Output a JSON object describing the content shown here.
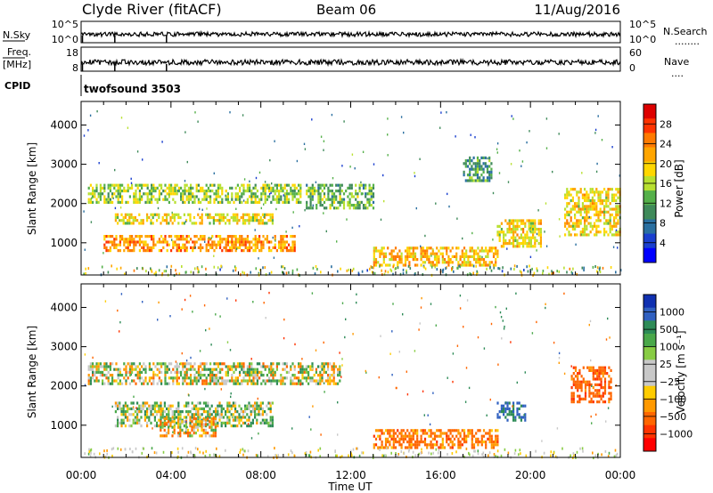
{
  "header": {
    "station": "Clyde River (fitACF)",
    "beam": "Beam 06",
    "date": "11/Aug/2016"
  },
  "top_panels": {
    "nsky": {
      "left_label": "N.Sky",
      "right_label": "N.Search",
      "right_dots": "........",
      "left_ticks": [
        "10^5",
        "10^0"
      ],
      "right_ticks": [
        "10^5",
        "10^0"
      ]
    },
    "freq": {
      "left_label_line1": "Freq.",
      "left_label_line2": "[MHz]",
      "right_label": "Nave",
      "right_dots": "....",
      "left_ticks": [
        "18",
        "8"
      ],
      "right_ticks": [
        "60",
        "0"
      ]
    },
    "cpid": {
      "label": "CPID",
      "value": "twofsound 3503"
    }
  },
  "time_axis": {
    "label": "Time UT",
    "ticks": [
      "00:00",
      "04:00",
      "08:00",
      "12:00",
      "16:00",
      "20:00",
      "00:00"
    ]
  },
  "chart_data": [
    {
      "type": "heatmap",
      "name": "power",
      "ylabel": "Slant Range [km]",
      "ylim": [
        180,
        4600
      ],
      "yticks": [
        1000,
        2000,
        3000,
        4000
      ],
      "xlim": [
        0,
        24
      ],
      "colorbar": {
        "label": "Power [dB]",
        "ticks": [
          "28",
          "24",
          "20",
          "16",
          "12",
          "8",
          "4"
        ],
        "colors": [
          "#dd0000",
          "#ff3300",
          "#ff7a00",
          "#ffa500",
          "#ffd700",
          "#b8e030",
          "#55b04a",
          "#3f8a5a",
          "#2a6fa0",
          "#1a3fcf",
          "#0000ff"
        ]
      },
      "bands": [
        {
          "t0": 0.3,
          "t1": 9.8,
          "r0": 2050,
          "r1": 2500,
          "v": 14
        },
        {
          "t0": 1.5,
          "t1": 8.5,
          "r0": 1500,
          "r1": 1750,
          "v": 17
        },
        {
          "t0": 1.0,
          "t1": 9.5,
          "r0": 800,
          "r1": 1200,
          "v": 22
        },
        {
          "t0": 10.0,
          "t1": 13.0,
          "r0": 1900,
          "r1": 2500,
          "v": 12
        },
        {
          "t0": 13.0,
          "t1": 18.5,
          "r0": 450,
          "r1": 900,
          "v": 20
        },
        {
          "t0": 17.0,
          "t1": 18.3,
          "r0": 2600,
          "r1": 3200,
          "v": 10
        },
        {
          "t0": 18.5,
          "t1": 20.5,
          "r0": 900,
          "r1": 1600,
          "v": 18
        },
        {
          "t0": 21.5,
          "t1": 24.0,
          "r0": 1200,
          "r1": 2400,
          "v": 18
        }
      ]
    },
    {
      "type": "heatmap",
      "name": "velocity",
      "ylabel": "Slant Range [km]",
      "ylim": [
        180,
        4600
      ],
      "yticks": [
        1000,
        2000,
        3000,
        4000
      ],
      "xlim": [
        0,
        24
      ],
      "colorbar": {
        "label": "Velocity [m s⁻¹]",
        "ticks": [
          "1000",
          "500",
          "100",
          "25",
          "−25",
          "−100",
          "−500",
          "−1000"
        ],
        "colors": [
          "#1030b0",
          "#3060c0",
          "#2e8b57",
          "#4aa84a",
          "#88cc44",
          "#c8c8c8",
          "#c8c8c8",
          "#ffcc00",
          "#ff9900",
          "#ff6600",
          "#ff3300",
          "#ff0000"
        ]
      },
      "bands": [
        {
          "t0": 0.3,
          "t1": 11.5,
          "r0": 2050,
          "r1": 2600,
          "v": 0
        },
        {
          "t0": 1.5,
          "t1": 8.5,
          "r0": 1000,
          "r1": 1600,
          "v": 80
        },
        {
          "t0": 3.5,
          "t1": 6.0,
          "r0": 700,
          "r1": 1200,
          "v": -100
        },
        {
          "t0": 13.0,
          "t1": 18.5,
          "r0": 450,
          "r1": 900,
          "v": -300
        },
        {
          "t0": 18.5,
          "t1": 19.8,
          "r0": 1100,
          "r1": 1600,
          "v": 600
        },
        {
          "t0": 21.8,
          "t1": 23.6,
          "r0": 1600,
          "r1": 2500,
          "v": -400
        }
      ]
    }
  ]
}
